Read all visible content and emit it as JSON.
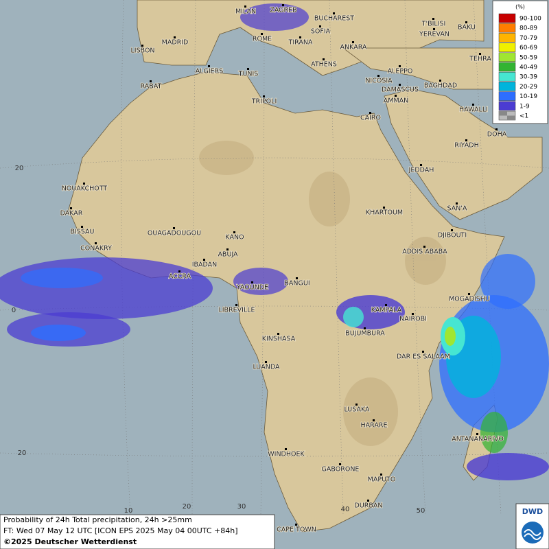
{
  "map": {
    "cities": [
      "MILAN",
      "ZAGREB",
      "BUCHAREST",
      "SOFIA",
      "ROME",
      "TIRANA",
      "ANKARA",
      "T'BILISI",
      "BAKU",
      "YEREVAN",
      "TEHRA",
      "LISBON",
      "MADRID",
      "ALGIERS",
      "TUNIS",
      "ATHENS",
      "ALEPPO",
      "NICOSIA",
      "BAGHDAD",
      "RABAT",
      "DAMASCUS",
      "AMMAN",
      "TRIPOLI",
      "HAWALLI",
      "CAIRO",
      "DOHA",
      "RIYADH",
      "NOUAKCHOTT",
      "JEDDAH",
      "DAKAR",
      "SAN'A",
      "KHARTOUM",
      "BISSAU",
      "OUAGADOUGOU",
      "KANO",
      "DJIBOUTI",
      "CONAKRY",
      "ABUJA",
      "ADDIS ABABA",
      "IBADAN",
      "ACCRA",
      "YAOUNDE",
      "BANGUI",
      "MOGADISHU",
      "LIBREVILLE",
      "KAMPALA",
      "NAIROBI",
      "BUJUMBURA",
      "KINSHASA",
      "DAR ES SALAAM",
      "LUANDA",
      "LUSAKA",
      "HARARE",
      "ANTANANARIVO",
      "WINDHOEK",
      "GABORONE",
      "MAPUTO",
      "DURBAN",
      "CAPE TOWN"
    ],
    "lat_labels": [
      20,
      0,
      20
    ],
    "lon_labels": [
      10,
      20,
      30,
      40,
      50
    ]
  },
  "legend": {
    "unit": "(%)",
    "items": [
      {
        "label": "90-100",
        "color": "#c80000"
      },
      {
        "label": "80-89",
        "color": "#ff7d00"
      },
      {
        "label": "70-79",
        "color": "#ffb400"
      },
      {
        "label": "60-69",
        "color": "#f0f000"
      },
      {
        "label": "50-59",
        "color": "#a0e632"
      },
      {
        "label": "40-49",
        "color": "#32b432"
      },
      {
        "label": "30-39",
        "color": "#46e6d2"
      },
      {
        "label": "20-29",
        "color": "#00b4dc"
      },
      {
        "label": "10-19",
        "color": "#2d6eff"
      },
      {
        "label": "1-9",
        "color": "#4b3cd2"
      },
      {
        "label": "<1",
        "color": "#bbbbbb"
      }
    ]
  },
  "footer": {
    "lines": [
      "Probability of 24h Total precipitation, 24h >25mm",
      "FT: Wed 07 May 12 UTC [ICON EPS 2025 May 04 00UTC +84h]",
      "©2025 Deutscher Wetterdienst"
    ]
  },
  "logo": {
    "text": "DWD"
  }
}
